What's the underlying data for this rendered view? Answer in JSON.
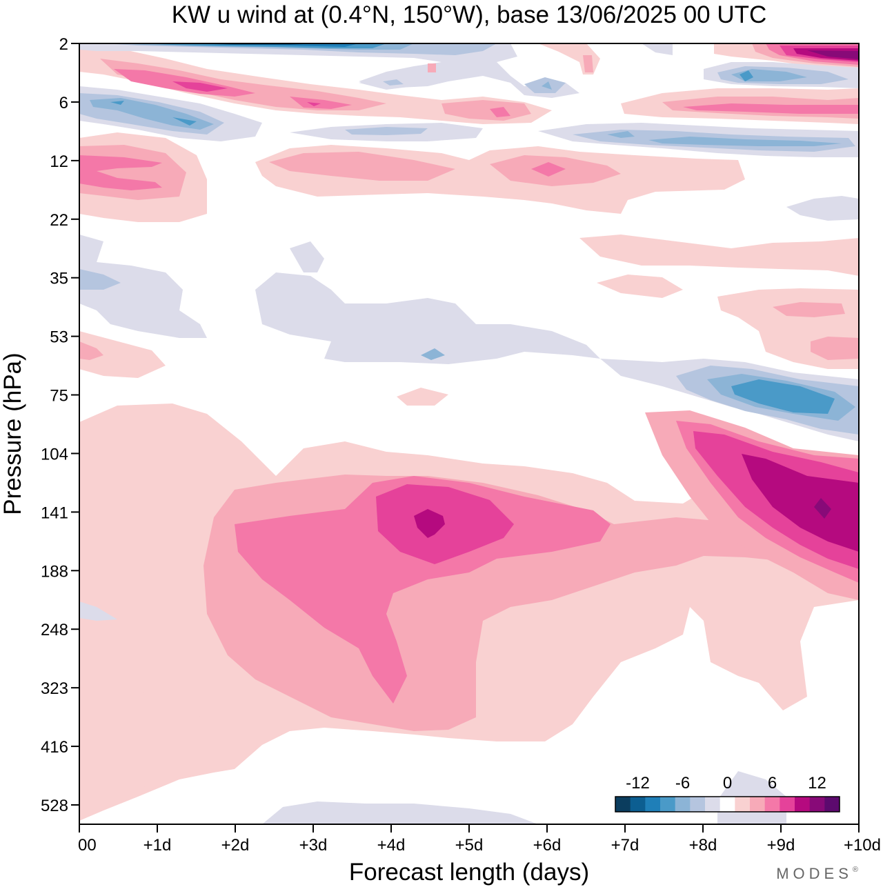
{
  "chart_data": {
    "type": "heatmap",
    "title": "KW u wind at (0.4°N, 150°W),  base 13/06/2025  00 UTC",
    "xlabel": "Forecast length (days)",
    "ylabel": "Pressure (hPa)",
    "x_ticks": [
      "00",
      "+1d",
      "+2d",
      "+3d",
      "+4d",
      "+5d",
      "+6d",
      "+7d",
      "+8d",
      "+9d",
      "+10d"
    ],
    "y_ticks": [
      "2",
      "6",
      "12",
      "22",
      "35",
      "53",
      "75",
      "104",
      "141",
      "188",
      "248",
      "323",
      "416",
      "528"
    ],
    "xlim": [
      0,
      10
    ],
    "colorbar": {
      "tick_labels": [
        "-12",
        "-6",
        "0",
        "6",
        "12"
      ],
      "levels": [
        -14,
        -12,
        -10,
        -8,
        -6,
        -4,
        -2,
        0,
        2,
        4,
        6,
        8,
        10,
        12,
        14
      ],
      "colors": [
        "#0b3d5e",
        "#0c5e91",
        "#1f7fb8",
        "#4a9ac8",
        "#8cb4d6",
        "#b5c5df",
        "#dcdcea",
        "#ffffff",
        "#f9d1d1",
        "#f7aab8",
        "#f478a8",
        "#e5429a",
        "#b50a7f",
        "#880a78",
        "#5c0a6e"
      ]
    },
    "features": [
      {
        "type": "easterly",
        "value": -10,
        "x": [
          0.5,
          4.0
        ],
        "y": "2"
      },
      {
        "type": "westerly",
        "value": 12,
        "x": [
          9.0,
          10.0
        ],
        "y": "3"
      },
      {
        "type": "westerly",
        "value": 8,
        "x": [
          0.5,
          3.5
        ],
        "y": "4-6"
      },
      {
        "type": "easterly",
        "value": -6,
        "x": [
          0,
          2
        ],
        "y": "6-8"
      },
      {
        "type": "easterly",
        "value": -6,
        "x": [
          8.5,
          10
        ],
        "y": "4-6"
      },
      {
        "type": "westerly",
        "value": 6,
        "x": [
          8,
          10
        ],
        "y": "6-7"
      },
      {
        "type": "westerly",
        "value": 4,
        "x": [
          0,
          1.5
        ],
        "y": "12-16"
      },
      {
        "type": "westerly",
        "value": 6,
        "x": [
          5.5,
          6.5
        ],
        "y": "12-14"
      },
      {
        "type": "easterly",
        "value": -4,
        "x": [
          7,
          10
        ],
        "y": "9-10"
      },
      {
        "type": "easterly",
        "value": -10,
        "x": [
          8,
          10
        ],
        "y": "75-90"
      },
      {
        "type": "westerly",
        "value": 10,
        "x": [
          4.0,
          5.0
        ],
        "y": "141"
      },
      {
        "type": "westerly",
        "value": 6,
        "x": [
          2.5,
          7.0
        ],
        "y": "141-230"
      },
      {
        "type": "westerly",
        "value": 12,
        "x": [
          8.5,
          10
        ],
        "y": "104-188"
      },
      {
        "type": "westerly",
        "value": 2,
        "x": [
          0,
          9
        ],
        "y": "104-416"
      },
      {
        "type": "easterly",
        "value": -2,
        "x": [
          0,
          4.5
        ],
        "y": "30-60"
      }
    ]
  },
  "brand": {
    "label": "MODES"
  }
}
